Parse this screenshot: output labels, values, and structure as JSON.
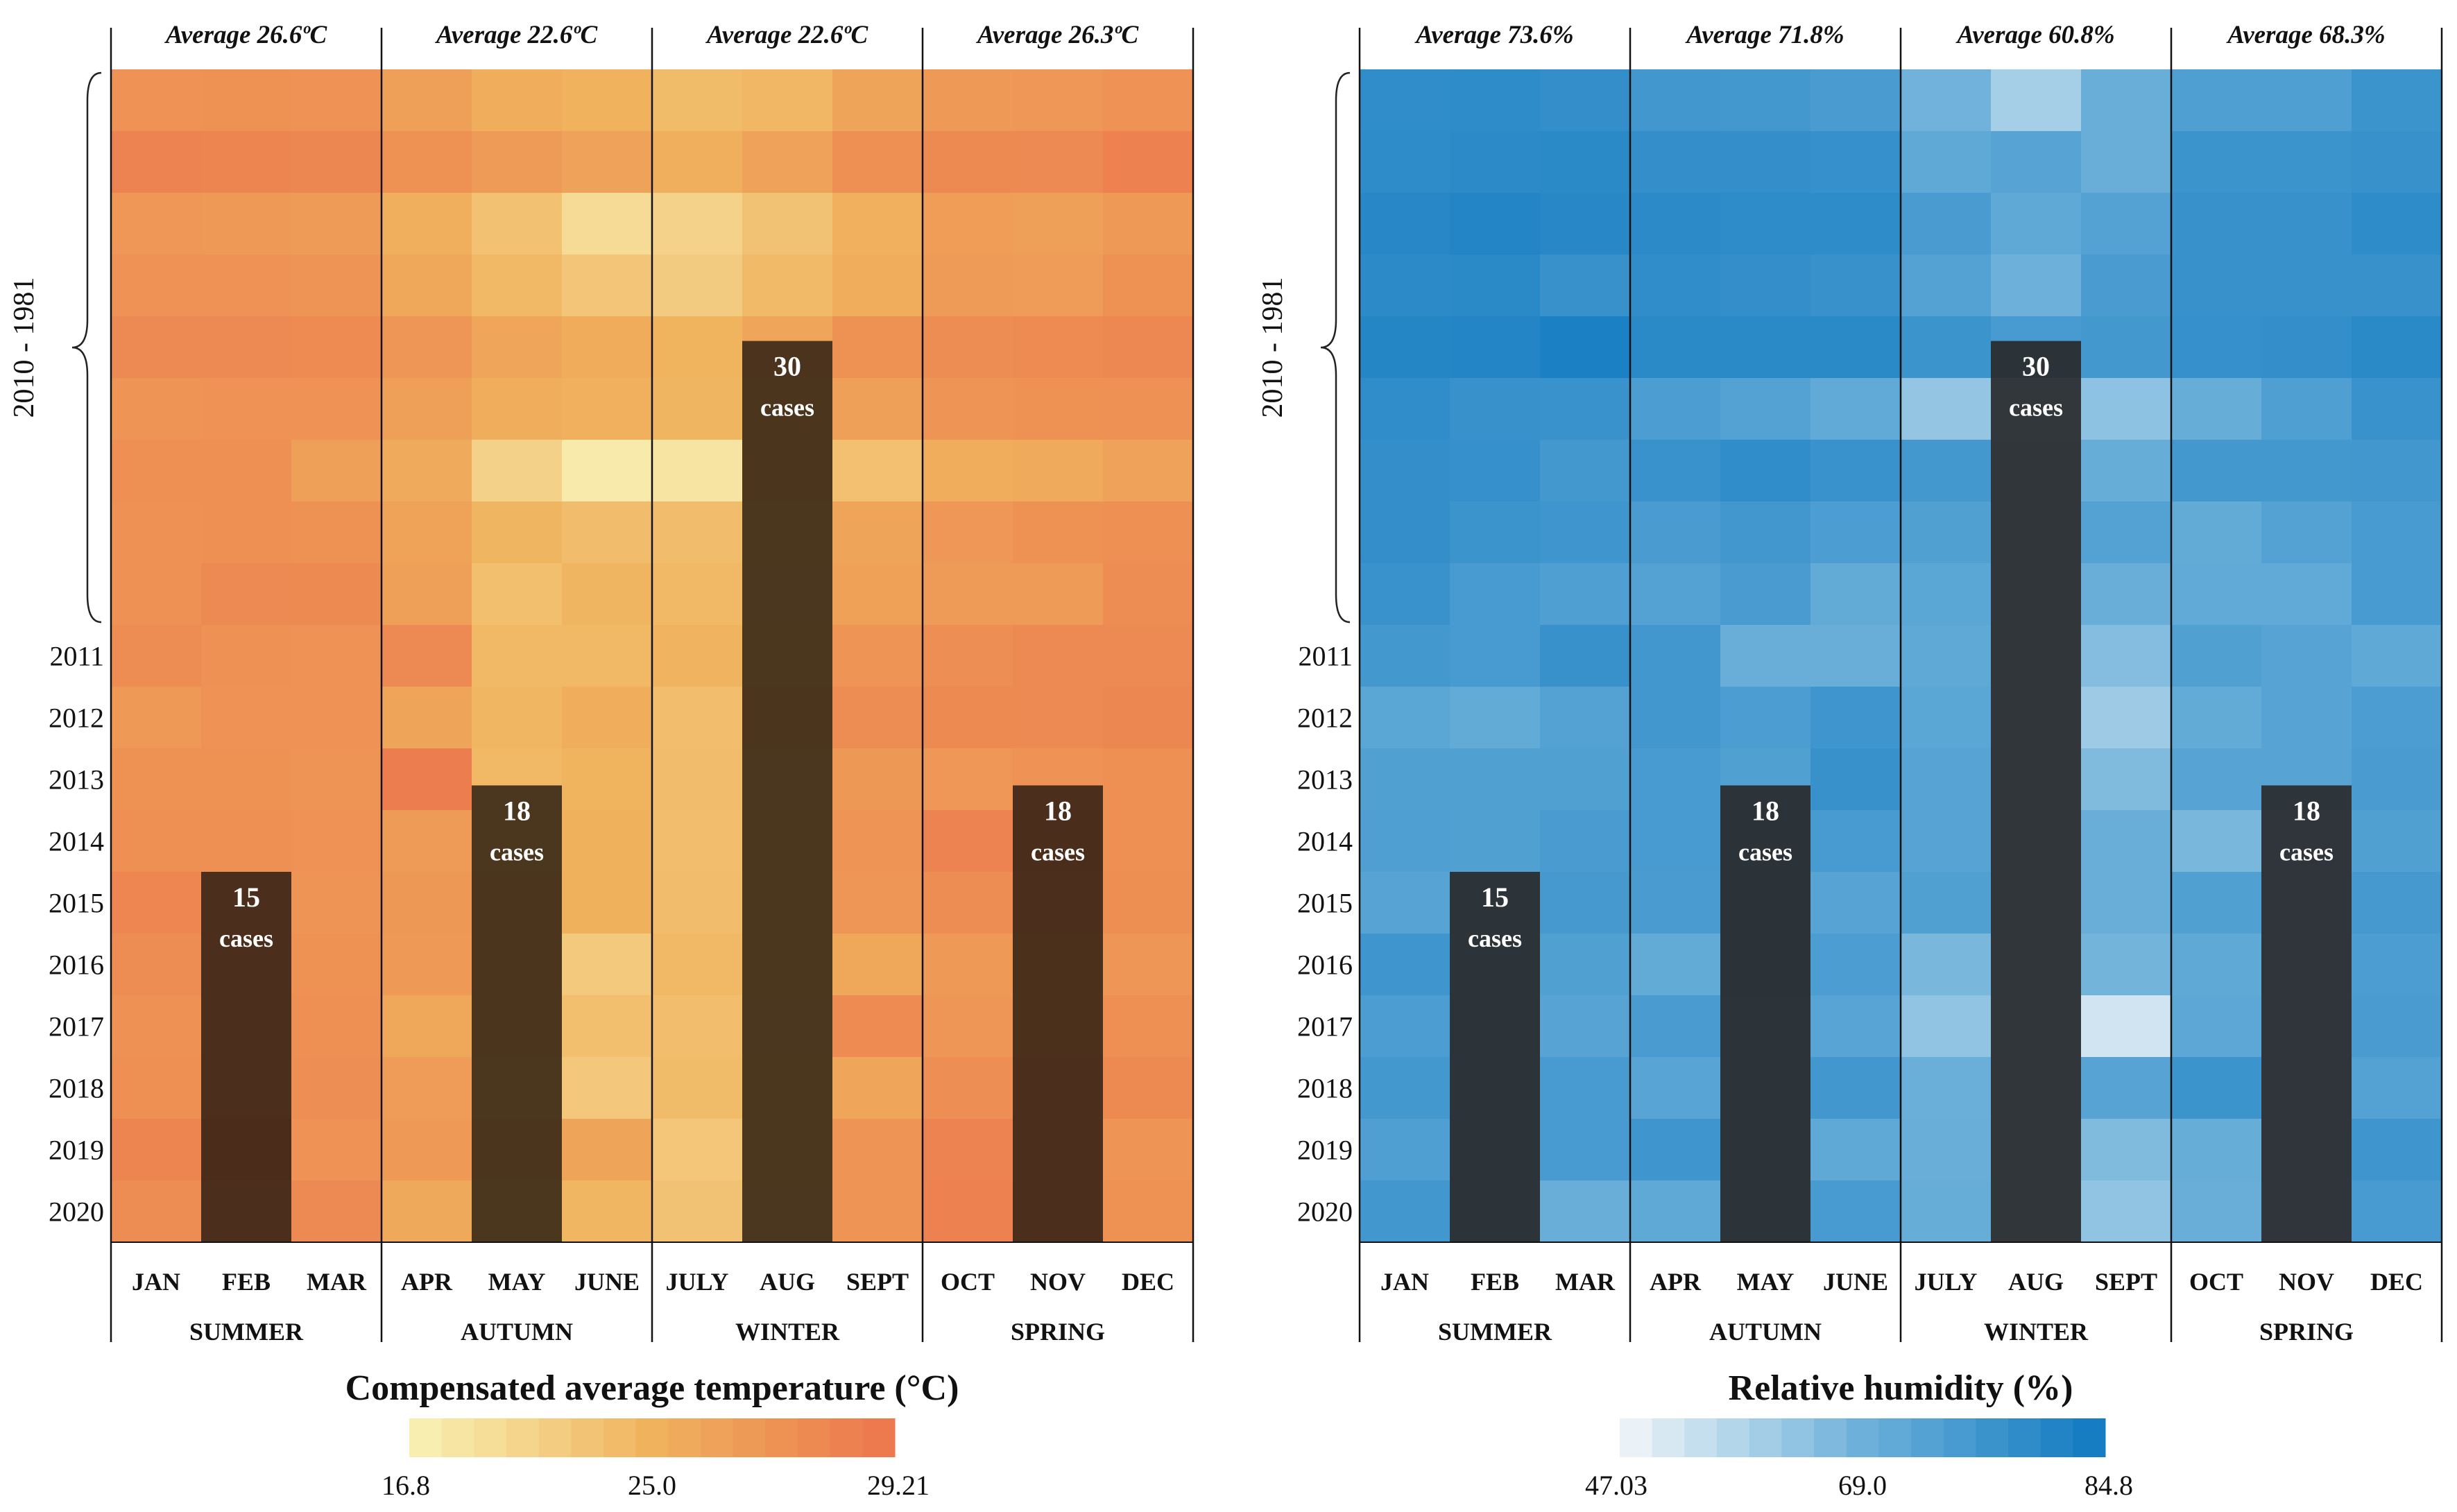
{
  "chart_data": [
    {
      "type": "heatmap",
      "title": "Compensated average temperature (°C)",
      "months": [
        "JAN",
        "FEB",
        "MAR",
        "APR",
        "MAY",
        "JUNE",
        "JULY",
        "AUG",
        "SEPT",
        "OCT",
        "NOV",
        "DEC"
      ],
      "seasons": [
        "SUMMER",
        "AUTUMN",
        "WINTER",
        "SPRING"
      ],
      "season_averages": [
        "Average 26.6ºC",
        "Average 22.6ºC",
        "Average 22.6ºC",
        "Average 26.3ºC"
      ],
      "period_label": "2010 - 1981",
      "year_labels": [
        "2011",
        "2012",
        "2013",
        "2014",
        "2015",
        "2016",
        "2017",
        "2018",
        "2019",
        "2020"
      ],
      "rows_period": 9,
      "colorbar": {
        "min": 16.8,
        "max": 29.21,
        "ticks": [
          "16.8",
          "25.0",
          "29.21"
        ],
        "colors": [
          "#f8eeb0",
          "#f0b25d",
          "#ec7a4e"
        ]
      },
      "values": [
        [
          26.5,
          26.6,
          26.4,
          25.0,
          23.5,
          23.0,
          22.0,
          22.5,
          24.5,
          25.8,
          26.0,
          26.4
        ],
        [
          28.2,
          28.0,
          27.8,
          26.6,
          25.6,
          24.8,
          23.3,
          24.8,
          26.8,
          27.4,
          27.5,
          28.3
        ],
        [
          26.0,
          25.8,
          25.6,
          23.3,
          21.4,
          18.8,
          19.7,
          21.3,
          23.2,
          25.3,
          25.0,
          25.7
        ],
        [
          26.4,
          26.5,
          26.2,
          24.1,
          22.4,
          21.0,
          20.4,
          22.2,
          23.6,
          25.6,
          25.4,
          26.6
        ],
        [
          27.6,
          27.5,
          27.3,
          26.1,
          24.4,
          23.7,
          22.9,
          24.4,
          26.6,
          27.1,
          27.3,
          27.7
        ],
        [
          26.3,
          26.5,
          26.4,
          25.0,
          23.5,
          23.2,
          22.7,
          23.6,
          25.0,
          26.2,
          26.6,
          26.7
        ],
        [
          26.8,
          26.8,
          25.0,
          23.8,
          19.8,
          17.2,
          17.8,
          23.0,
          21.6,
          23.5,
          23.8,
          24.8
        ],
        [
          26.7,
          26.8,
          26.6,
          24.7,
          22.7,
          21.9,
          21.9,
          22.6,
          24.5,
          26.0,
          26.6,
          26.8
        ],
        [
          26.7,
          27.6,
          27.4,
          25.0,
          21.7,
          22.7,
          22.4,
          22.4,
          24.9,
          25.5,
          25.6,
          27.1
        ],
        [
          27.2,
          26.7,
          26.4,
          27.6,
          22.4,
          22.3,
          22.8,
          22.8,
          26.2,
          26.9,
          27.5,
          27.6
        ],
        [
          25.8,
          26.5,
          26.5,
          24.5,
          22.6,
          23.4,
          21.8,
          23.1,
          27.2,
          27.4,
          27.6,
          27.8
        ],
        [
          26.6,
          26.6,
          26.3,
          28.9,
          22.3,
          22.9,
          21.9,
          22.4,
          25.9,
          26.0,
          26.4,
          26.8
        ],
        [
          26.8,
          26.8,
          26.4,
          25.6,
          22.8,
          23.1,
          21.8,
          22.9,
          26.2,
          28.2,
          27.6,
          26.8
        ],
        [
          27.9,
          27.0,
          26.2,
          25.9,
          23.4,
          23.1,
          21.9,
          22.8,
          26.1,
          27.2,
          26.9,
          27.0
        ],
        [
          27.1,
          27.1,
          26.6,
          25.7,
          23.3,
          20.6,
          22.3,
          22.9,
          24.2,
          25.8,
          26.1,
          26.1
        ],
        [
          26.7,
          26.7,
          26.8,
          24.1,
          23.2,
          21.7,
          21.8,
          22.3,
          27.3,
          26.1,
          26.2,
          26.8
        ],
        [
          26.8,
          26.8,
          26.9,
          25.4,
          22.9,
          20.7,
          22.0,
          22.8,
          24.3,
          26.9,
          26.6,
          27.4
        ],
        [
          28.0,
          28.2,
          26.5,
          25.8,
          23.3,
          24.5,
          20.9,
          22.9,
          26.2,
          28.2,
          27.2,
          26.3
        ],
        [
          27.1,
          27.0,
          27.5,
          24.0,
          22.6,
          22.6,
          21.3,
          22.3,
          26.2,
          28.3,
          26.6,
          26.6
        ]
      ],
      "case_bars": [
        {
          "month": "FEB",
          "cases": 15,
          "number": "15",
          "unit": "cases"
        },
        {
          "month": "MAY",
          "cases": 18,
          "number": "18",
          "unit": "cases"
        },
        {
          "month": "AUG",
          "cases": 30,
          "number": "30",
          "unit": "cases"
        },
        {
          "month": "NOV",
          "cases": 18,
          "number": "18",
          "unit": "cases"
        }
      ]
    },
    {
      "type": "heatmap",
      "title": "Relative humidity (%)",
      "months": [
        "JAN",
        "FEB",
        "MAR",
        "APR",
        "MAY",
        "JUNE",
        "JULY",
        "AUG",
        "SEPT",
        "OCT",
        "NOV",
        "DEC"
      ],
      "seasons": [
        "SUMMER",
        "AUTUMN",
        "WINTER",
        "SPRING"
      ],
      "season_averages": [
        "Average 73.6%",
        "Average 71.8%",
        "Average 60.8%",
        "Average 68.3%"
      ],
      "period_label": "2010 - 1981",
      "year_labels": [
        "2011",
        "2012",
        "2013",
        "2014",
        "2015",
        "2016",
        "2017",
        "2018",
        "2019",
        "2020"
      ],
      "rows_period": 9,
      "colorbar": {
        "min": 47.03,
        "max": 84.8,
        "ticks": [
          "47.03",
          "69.0",
          "84.8"
        ],
        "colors": [
          "#eaf1f7",
          "#6db1da",
          "#167dc2"
        ]
      },
      "values": [
        [
          79.0,
          79.5,
          78.5,
          75.5,
          75.0,
          73.5,
          65.5,
          57.5,
          67.0,
          72.5,
          72.5,
          76.5
        ],
        [
          79.5,
          80.0,
          80.5,
          78.5,
          78.5,
          78.0,
          69.0,
          71.0,
          67.0,
          76.5,
          76.5,
          77.5
        ],
        [
          81.0,
          82.0,
          81.0,
          80.0,
          79.5,
          79.5,
          73.5,
          69.0,
          71.5,
          77.5,
          77.5,
          79.5
        ],
        [
          80.0,
          80.5,
          77.5,
          79.0,
          78.5,
          77.5,
          71.5,
          66.0,
          73.5,
          77.5,
          77.5,
          77.5
        ],
        [
          81.5,
          82.0,
          83.5,
          80.5,
          80.5,
          80.5,
          76.5,
          74.0,
          75.0,
          78.0,
          78.5,
          80.5
        ],
        [
          79.0,
          77.5,
          77.0,
          73.0,
          71.5,
          68.5,
          60.0,
          68.0,
          61.0,
          67.5,
          72.5,
          77.0
        ],
        [
          78.5,
          78.0,
          75.0,
          77.0,
          79.0,
          77.0,
          75.0,
          69.0,
          67.5,
          75.0,
          75.0,
          75.5
        ],
        [
          78.5,
          76.5,
          76.0,
          73.5,
          75.5,
          73.0,
          72.0,
          69.0,
          71.5,
          68.0,
          71.5,
          74.0
        ],
        [
          77.0,
          74.0,
          72.5,
          71.5,
          73.5,
          68.0,
          70.0,
          69.0,
          67.0,
          68.5,
          68.5,
          74.0
        ],
        [
          75.0,
          74.0,
          77.5,
          75.5,
          67.0,
          67.0,
          69.0,
          69.0,
          62.5,
          72.0,
          71.0,
          69.0
        ],
        [
          70.0,
          68.0,
          71.5,
          75.5,
          73.0,
          76.0,
          70.0,
          69.0,
          58.5,
          68.0,
          71.0,
          73.0
        ],
        [
          72.0,
          72.0,
          72.0,
          74.0,
          72.0,
          77.5,
          71.0,
          69.0,
          63.0,
          71.0,
          71.0,
          73.5
        ],
        [
          72.5,
          72.0,
          73.5,
          74.0,
          73.0,
          74.0,
          71.0,
          69.0,
          67.0,
          64.0,
          70.0,
          72.0
        ],
        [
          71.0,
          72.0,
          74.5,
          73.5,
          73.0,
          71.0,
          72.0,
          69.0,
          67.0,
          72.0,
          70.0,
          74.5
        ],
        [
          76.0,
          72.0,
          72.0,
          68.0,
          73.0,
          73.0,
          64.0,
          69.0,
          65.0,
          69.0,
          70.0,
          73.0
        ],
        [
          73.0,
          72.0,
          71.0,
          73.5,
          72.0,
          70.5,
          60.5,
          69.0,
          51.0,
          69.5,
          70.0,
          73.5
        ],
        [
          75.0,
          72.0,
          74.0,
          70.5,
          72.0,
          75.5,
          66.5,
          69.0,
          71.0,
          76.5,
          70.0,
          71.5
        ],
        [
          72.5,
          72.0,
          74.0,
          76.0,
          72.0,
          69.0,
          67.0,
          69.0,
          63.0,
          67.5,
          70.0,
          76.0
        ],
        [
          75.5,
          72.0,
          67.0,
          69.0,
          72.0,
          74.0,
          67.5,
          69.0,
          60.5,
          67.0,
          70.0,
          74.0
        ]
      ],
      "case_bars": [
        {
          "month": "FEB",
          "cases": 15,
          "number": "15",
          "unit": "cases"
        },
        {
          "month": "MAY",
          "cases": 18,
          "number": "18",
          "unit": "cases"
        },
        {
          "month": "AUG",
          "cases": 30,
          "number": "30",
          "unit": "cases"
        },
        {
          "month": "NOV",
          "cases": 18,
          "number": "18",
          "unit": "cases"
        }
      ]
    }
  ]
}
